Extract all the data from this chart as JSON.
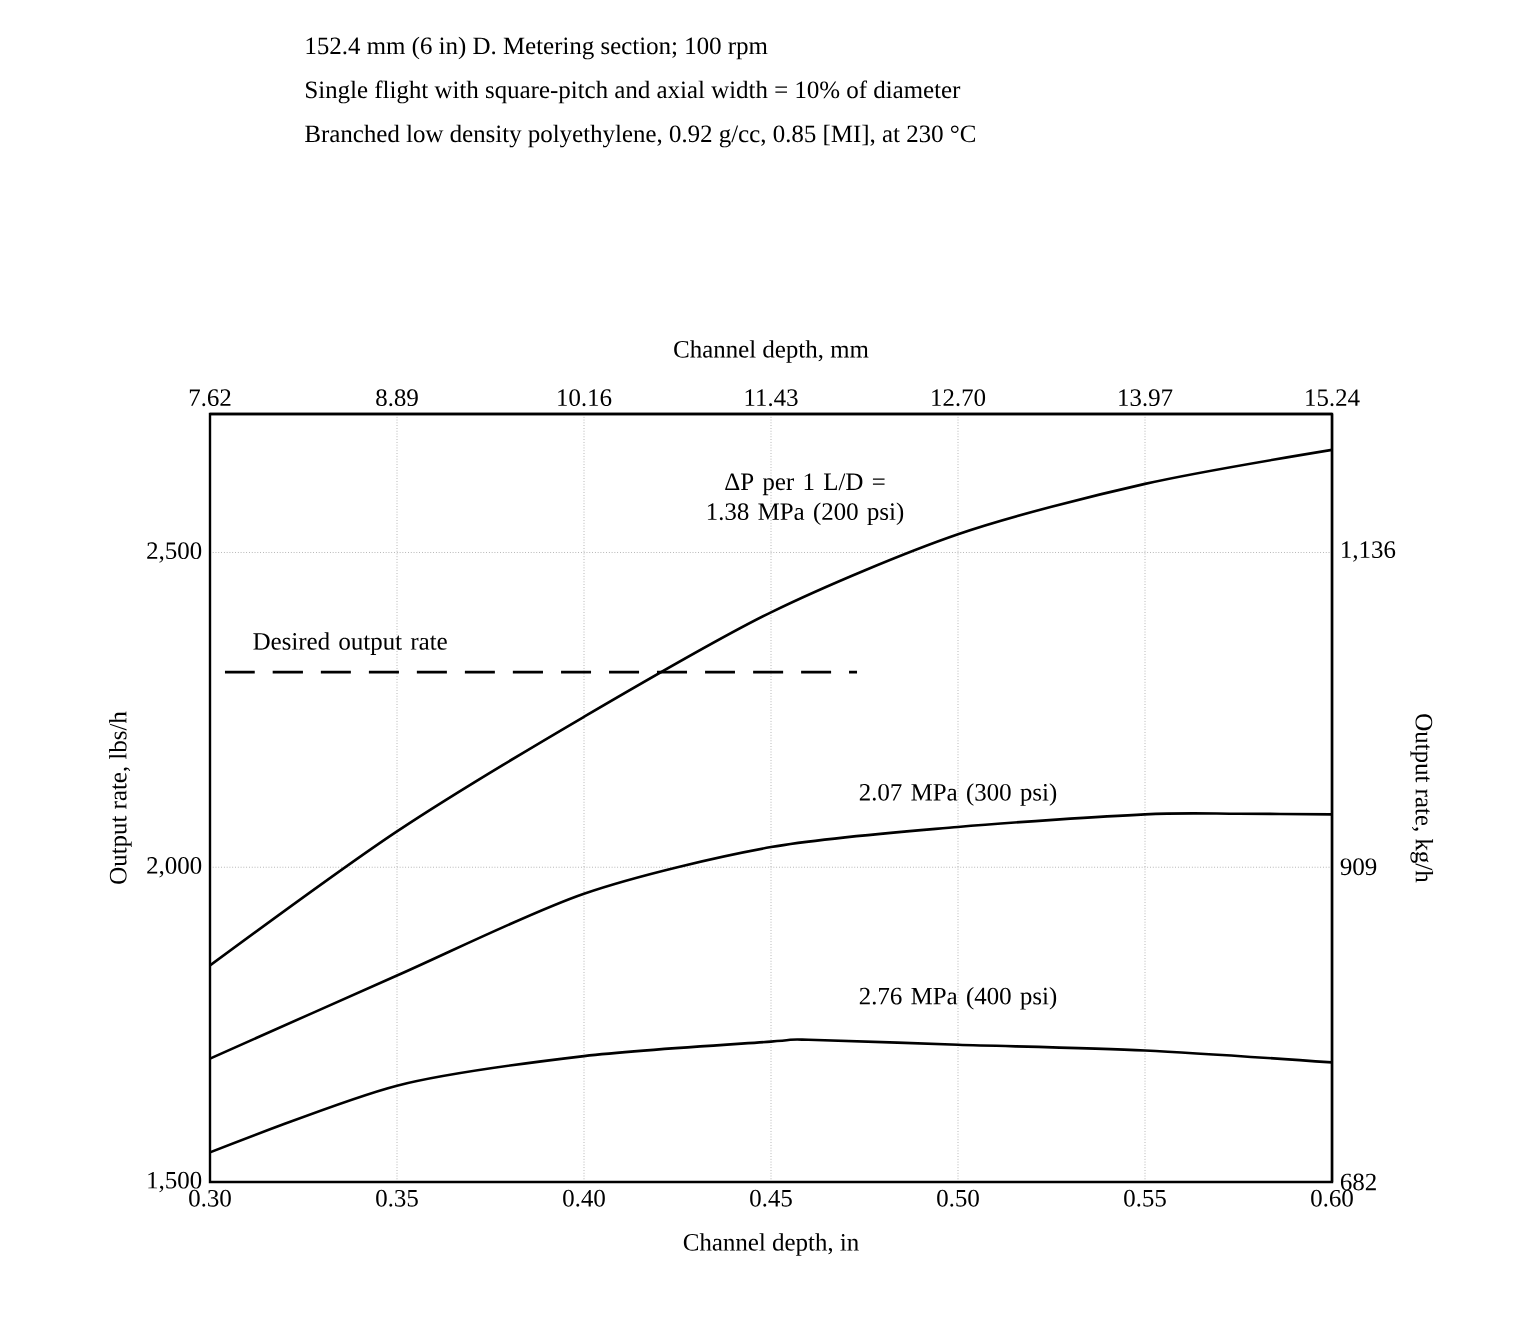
{
  "chart_data": {
    "type": "line",
    "title": "152.4 mm (6 in) D.  Metering section;    100 rpm",
    "subtitle": "Single flight with square-pitch and axial width = 10% of diameter",
    "xlabel": "Channel depth, in",
    "ylabel": "Output rate, lbs/h",
    "y2label": "Output rate, kg/h",
    "x2label": "Channel depth, mm",
    "xlim": [
      0.3,
      0.6
    ],
    "xticks": [
      {
        "value": 0.3,
        "label": "0.30"
      },
      0.35,
      {
        "value": 0.4,
        "label": "0.40"
      },
      0.45,
      {
        "value": 0.5,
        "label": "0.50"
      },
      0.55,
      {
        "value": 0.6,
        "label": "0.60"
      }
    ],
    "ylim": [
      1500,
      2720
    ],
    "yticks": [
      {
        "value": 1500,
        "label": "1,500"
      },
      {
        "value": 2000,
        "label": "2,000"
      },
      {
        "value": 2500,
        "label": "2,500"
      }
    ],
    "y2lim": [
      682,
      1235
    ],
    "y2ticks": [
      682,
      909,
      {
        "value": 1136,
        "label": "1,136"
      }
    ],
    "x2lim": [
      7.62,
      15.24
    ],
    "x2ticks": [
      7.62,
      8.89,
      10.16,
      11.43,
      {
        "value": 12.7,
        "label": "12.70"
      },
      13.97,
      15.24
    ],
    "grid": true,
    "series": [
      {
        "name": "ΔP per 1 L/D = 1.38 MPa (200 psi)",
        "color": "#000000",
        "line_style": "solid",
        "x": [
          0.3,
          0.35,
          0.4,
          0.45,
          0.5,
          0.55,
          0.6
        ],
        "values": [
          1844,
          2057,
          2239,
          2405,
          2529,
          2609,
          2663
        ]
      },
      {
        "name": "2.07 MPa (300 psi)",
        "color": "#000000",
        "line_style": "solid",
        "x": [
          0.3,
          0.35,
          0.4,
          0.45,
          0.5,
          0.55,
          0.575,
          0.6
        ],
        "values": [
          1696,
          1828,
          1958,
          2032,
          2064,
          2084,
          2085,
          2084
        ]
      },
      {
        "name": "2.76 MPa (400 psi)",
        "color": "#000000",
        "line_style": "solid",
        "x": [
          0.3,
          0.35,
          0.4,
          0.45,
          0.46,
          0.5,
          0.55,
          0.6
        ],
        "values": [
          1547,
          1653,
          1700,
          1723,
          1726,
          1718,
          1709,
          1690
        ]
      },
      {
        "name": "Desired output rate",
        "color": "#000000",
        "line_style": "dashed",
        "x": [
          0.304,
          0.473
        ],
        "values": [
          2310,
          2310
        ]
      }
    ],
    "annotations": [
      "Branched  low density polyethylene,  0.92 g/cc,  0.85 [MI],  at 230 °C"
    ]
  }
}
